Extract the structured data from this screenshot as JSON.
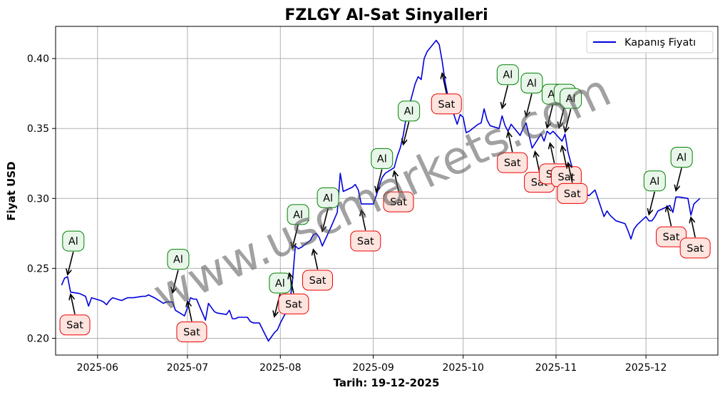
{
  "chart_data": {
    "type": "line",
    "title": "FZLGY Al-Sat Sinyalleri",
    "xlabel": "Tarih: 19-12-2025",
    "ylabel": "Fiyat USD",
    "watermark": "www.uscmarkets.com",
    "legend": {
      "placement": "top-right",
      "label": "Kapanış Fiyatı"
    },
    "line_color": "#0000dd",
    "grid": true,
    "xlim": [
      "2025-05-18",
      "2025-12-25"
    ],
    "ylim": [
      0.188,
      0.423
    ],
    "yticks": [
      0.2,
      0.25,
      0.3,
      0.35,
      0.4
    ],
    "ytick_labels": [
      "0.20",
      "0.25",
      "0.30",
      "0.35",
      "0.40"
    ],
    "xticks": [
      "2025-06-01",
      "2025-07-01",
      "2025-08-01",
      "2025-09-01",
      "2025-10-01",
      "2025-11-01",
      "2025-12-01"
    ],
    "xtick_labels": [
      "2025-06",
      "2025-07",
      "2025-08",
      "2025-09",
      "2025-10",
      "2025-11",
      "2025-12"
    ],
    "series": [
      {
        "name": "Kapanış Fiyatı",
        "points": [
          [
            "2025-05-20",
            0.238
          ],
          [
            "2025-05-21",
            0.243
          ],
          [
            "2025-05-22",
            0.244
          ],
          [
            "2025-05-23",
            0.233
          ],
          [
            "2025-05-26",
            0.232
          ],
          [
            "2025-05-27",
            0.231
          ],
          [
            "2025-05-28",
            0.23
          ],
          [
            "2025-05-29",
            0.223
          ],
          [
            "2025-05-30",
            0.229
          ],
          [
            "2025-06-02",
            0.227
          ],
          [
            "2025-06-03",
            0.226
          ],
          [
            "2025-06-04",
            0.224
          ],
          [
            "2025-06-05",
            0.227
          ],
          [
            "2025-06-06",
            0.229
          ],
          [
            "2025-06-09",
            0.227
          ],
          [
            "2025-06-10",
            0.228
          ],
          [
            "2025-06-11",
            0.229
          ],
          [
            "2025-06-12",
            0.229
          ],
          [
            "2025-06-13",
            0.229
          ],
          [
            "2025-06-16",
            0.23
          ],
          [
            "2025-06-17",
            0.23
          ],
          [
            "2025-06-18",
            0.231
          ],
          [
            "2025-06-19",
            0.23
          ],
          [
            "2025-06-20",
            0.229
          ],
          [
            "2025-06-23",
            0.225
          ],
          [
            "2025-06-24",
            0.226
          ],
          [
            "2025-06-25",
            0.226
          ],
          [
            "2025-06-26",
            0.226
          ],
          [
            "2025-06-27",
            0.22
          ],
          [
            "2025-06-30",
            0.216
          ],
          [
            "2025-07-01",
            0.222
          ],
          [
            "2025-07-02",
            0.229
          ],
          [
            "2025-07-03",
            0.228
          ],
          [
            "2025-07-04",
            0.228
          ],
          [
            "2025-07-07",
            0.213
          ],
          [
            "2025-07-08",
            0.225
          ],
          [
            "2025-07-09",
            0.222
          ],
          [
            "2025-07-10",
            0.219
          ],
          [
            "2025-07-11",
            0.218
          ],
          [
            "2025-07-14",
            0.217
          ],
          [
            "2025-07-15",
            0.22
          ],
          [
            "2025-07-16",
            0.214
          ],
          [
            "2025-07-17",
            0.214
          ],
          [
            "2025-07-18",
            0.215
          ],
          [
            "2025-07-21",
            0.215
          ],
          [
            "2025-07-22",
            0.212
          ],
          [
            "2025-07-23",
            0.211
          ],
          [
            "2025-07-24",
            0.211
          ],
          [
            "2025-07-25",
            0.211
          ],
          [
            "2025-07-28",
            0.198
          ],
          [
            "2025-07-29",
            0.201
          ],
          [
            "2025-07-30",
            0.204
          ],
          [
            "2025-07-31",
            0.206
          ],
          [
            "2025-08-01",
            0.211
          ],
          [
            "2025-08-04",
            0.223
          ],
          [
            "2025-08-05",
            0.24
          ],
          [
            "2025-08-06",
            0.266
          ],
          [
            "2025-08-07",
            0.264
          ],
          [
            "2025-08-08",
            0.265
          ],
          [
            "2025-08-11",
            0.27
          ],
          [
            "2025-08-12",
            0.274
          ],
          [
            "2025-08-13",
            0.275
          ],
          [
            "2025-08-14",
            0.272
          ],
          [
            "2025-08-15",
            0.266
          ],
          [
            "2025-08-18",
            0.28
          ],
          [
            "2025-08-19",
            0.285
          ],
          [
            "2025-08-20",
            0.29
          ],
          [
            "2025-08-21",
            0.318
          ],
          [
            "2025-08-22",
            0.305
          ],
          [
            "2025-08-25",
            0.308
          ],
          [
            "2025-08-26",
            0.31
          ],
          [
            "2025-08-27",
            0.306
          ],
          [
            "2025-08-28",
            0.296
          ],
          [
            "2025-08-29",
            0.296
          ],
          [
            "2025-09-01",
            0.296
          ],
          [
            "2025-09-02",
            0.302
          ],
          [
            "2025-09-03",
            0.309
          ],
          [
            "2025-09-04",
            0.315
          ],
          [
            "2025-09-05",
            0.318
          ],
          [
            "2025-09-08",
            0.322
          ],
          [
            "2025-09-09",
            0.33
          ],
          [
            "2025-09-10",
            0.336
          ],
          [
            "2025-09-11",
            0.345
          ],
          [
            "2025-09-12",
            0.358
          ],
          [
            "2025-09-15",
            0.382
          ],
          [
            "2025-09-16",
            0.387
          ],
          [
            "2025-09-17",
            0.385
          ],
          [
            "2025-09-18",
            0.4
          ],
          [
            "2025-09-19",
            0.405
          ],
          [
            "2025-09-22",
            0.413
          ],
          [
            "2025-09-23",
            0.41
          ],
          [
            "2025-09-24",
            0.398
          ],
          [
            "2025-09-25",
            0.383
          ],
          [
            "2025-09-26",
            0.372
          ],
          [
            "2025-09-29",
            0.353
          ],
          [
            "2025-09-30",
            0.36
          ],
          [
            "2025-10-01",
            0.358
          ],
          [
            "2025-10-02",
            0.347
          ],
          [
            "2025-10-03",
            0.348
          ],
          [
            "2025-10-06",
            0.353
          ],
          [
            "2025-10-07",
            0.354
          ],
          [
            "2025-10-08",
            0.364
          ],
          [
            "2025-10-09",
            0.356
          ],
          [
            "2025-10-10",
            0.352
          ],
          [
            "2025-10-13",
            0.35
          ],
          [
            "2025-10-14",
            0.359
          ],
          [
            "2025-10-15",
            0.352
          ],
          [
            "2025-10-16",
            0.348
          ],
          [
            "2025-10-17",
            0.353
          ],
          [
            "2025-10-20",
            0.345
          ],
          [
            "2025-10-21",
            0.35
          ],
          [
            "2025-10-22",
            0.354
          ],
          [
            "2025-10-23",
            0.345
          ],
          [
            "2025-10-24",
            0.336
          ],
          [
            "2025-10-27",
            0.346
          ],
          [
            "2025-10-28",
            0.341
          ],
          [
            "2025-10-29",
            0.348
          ],
          [
            "2025-10-30",
            0.346
          ],
          [
            "2025-10-31",
            0.348
          ],
          [
            "2025-11-03",
            0.341
          ],
          [
            "2025-11-04",
            0.346
          ],
          [
            "2025-11-05",
            0.333
          ],
          [
            "2025-11-06",
            0.325
          ],
          [
            "2025-11-07",
            0.318
          ],
          [
            "2025-11-10",
            0.305
          ],
          [
            "2025-11-11",
            0.303
          ],
          [
            "2025-11-12",
            0.302
          ],
          [
            "2025-11-13",
            0.304
          ],
          [
            "2025-11-14",
            0.306
          ],
          [
            "2025-11-17",
            0.287
          ],
          [
            "2025-11-18",
            0.291
          ],
          [
            "2025-11-19",
            0.288
          ],
          [
            "2025-11-20",
            0.286
          ],
          [
            "2025-11-21",
            0.284
          ],
          [
            "2025-11-24",
            0.282
          ],
          [
            "2025-11-25",
            0.277
          ],
          [
            "2025-11-26",
            0.271
          ],
          [
            "2025-11-27",
            0.278
          ],
          [
            "2025-11-28",
            0.281
          ],
          [
            "2025-12-01",
            0.287
          ],
          [
            "2025-12-02",
            0.284
          ],
          [
            "2025-12-03",
            0.284
          ],
          [
            "2025-12-04",
            0.287
          ],
          [
            "2025-12-05",
            0.291
          ],
          [
            "2025-12-08",
            0.294
          ],
          [
            "2025-12-09",
            0.295
          ],
          [
            "2025-12-10",
            0.29
          ],
          [
            "2025-12-11",
            0.301
          ],
          [
            "2025-12-12",
            0.301
          ],
          [
            "2025-12-15",
            0.3
          ],
          [
            "2025-12-16",
            0.288
          ],
          [
            "2025-12-17",
            0.296
          ],
          [
            "2025-12-18",
            0.298
          ],
          [
            "2025-12-19",
            0.3
          ]
        ]
      }
    ],
    "annotations": [
      {
        "label": "Al",
        "kind": "buy",
        "date": "2025-05-22",
        "price": 0.244
      },
      {
        "label": "Sat",
        "kind": "sell",
        "date": "2025-05-23",
        "price": 0.233
      },
      {
        "label": "Al",
        "kind": "buy",
        "date": "2025-06-26",
        "price": 0.231
      },
      {
        "label": "Sat",
        "kind": "sell",
        "date": "2025-07-01",
        "price": 0.228
      },
      {
        "label": "Al",
        "kind": "buy",
        "date": "2025-07-30",
        "price": 0.214
      },
      {
        "label": "Sat",
        "kind": "sell",
        "date": "2025-08-04",
        "price": 0.248
      },
      {
        "label": "Al",
        "kind": "buy",
        "date": "2025-08-05",
        "price": 0.263
      },
      {
        "label": "Sat",
        "kind": "sell",
        "date": "2025-08-12",
        "price": 0.265
      },
      {
        "label": "Al",
        "kind": "buy",
        "date": "2025-08-15",
        "price": 0.275
      },
      {
        "label": "Sat",
        "kind": "sell",
        "date": "2025-08-28",
        "price": 0.293
      },
      {
        "label": "Al",
        "kind": "buy",
        "date": "2025-09-02",
        "price": 0.303
      },
      {
        "label": "Sat",
        "kind": "sell",
        "date": "2025-09-08",
        "price": 0.321
      },
      {
        "label": "Al",
        "kind": "buy",
        "date": "2025-09-11",
        "price": 0.337
      },
      {
        "label": "Sat",
        "kind": "sell",
        "date": "2025-09-24",
        "price": 0.391
      },
      {
        "label": "Al",
        "kind": "buy",
        "date": "2025-10-14",
        "price": 0.363
      },
      {
        "label": "Sat",
        "kind": "sell",
        "date": "2025-10-16",
        "price": 0.349
      },
      {
        "label": "Al",
        "kind": "buy",
        "date": "2025-10-22",
        "price": 0.357
      },
      {
        "label": "Sat",
        "kind": "sell",
        "date": "2025-10-25",
        "price": 0.335
      },
      {
        "label": "Al",
        "kind": "buy",
        "date": "2025-10-29",
        "price": 0.349
      },
      {
        "label": "Sat",
        "kind": "sell",
        "date": "2025-10-30",
        "price": 0.341
      },
      {
        "label": "Al",
        "kind": "buy",
        "date": "2025-11-02",
        "price": 0.349
      },
      {
        "label": "Sat",
        "kind": "sell",
        "date": "2025-11-03",
        "price": 0.339
      },
      {
        "label": "Al",
        "kind": "buy",
        "date": "2025-11-04",
        "price": 0.346
      },
      {
        "label": "Sat",
        "kind": "sell",
        "date": "2025-11-05",
        "price": 0.327
      },
      {
        "label": "Al",
        "kind": "buy",
        "date": "2025-12-02",
        "price": 0.287
      },
      {
        "label": "Sat",
        "kind": "sell",
        "date": "2025-12-08",
        "price": 0.296
      },
      {
        "label": "Al",
        "kind": "buy",
        "date": "2025-12-11",
        "price": 0.304
      },
      {
        "label": "Sat",
        "kind": "sell",
        "date": "2025-12-16",
        "price": 0.288
      }
    ],
    "colors": {
      "buy_edge": "#008000",
      "buy_fill": "#e8f6ea",
      "sell_edge": "#ee0000",
      "sell_fill": "#fde4df",
      "grid": "#b0b0b0",
      "axes": "#000000"
    }
  }
}
